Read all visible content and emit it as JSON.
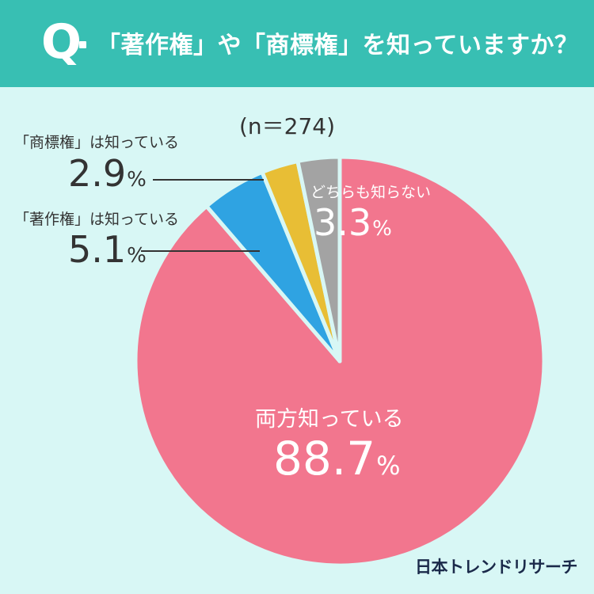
{
  "header": {
    "q_mark": "Q",
    "question": "「著作権」や「商標権」を知っていますか？"
  },
  "sample": "(n＝274)",
  "brand": "日本トレンドリサーチ",
  "chart_data": {
    "type": "pie",
    "slices": [
      {
        "label": "両方知っている",
        "value": 88.7,
        "display": "88.7",
        "color": "#f2768e"
      },
      {
        "label": "「著作権」は知っている",
        "value": 5.1,
        "display": "5.1",
        "color": "#2fa3e2"
      },
      {
        "label": "「商標権」は知っている",
        "value": 2.9,
        "display": "2.9",
        "color": "#e8be35"
      },
      {
        "label": "どちらも知らない",
        "value": 3.3,
        "display": "3.3",
        "color": "#a3a3a3"
      }
    ],
    "unit": "%"
  },
  "colors": {
    "header_bg": "#38bfb3",
    "page_bg": "#d8f7f5"
  }
}
